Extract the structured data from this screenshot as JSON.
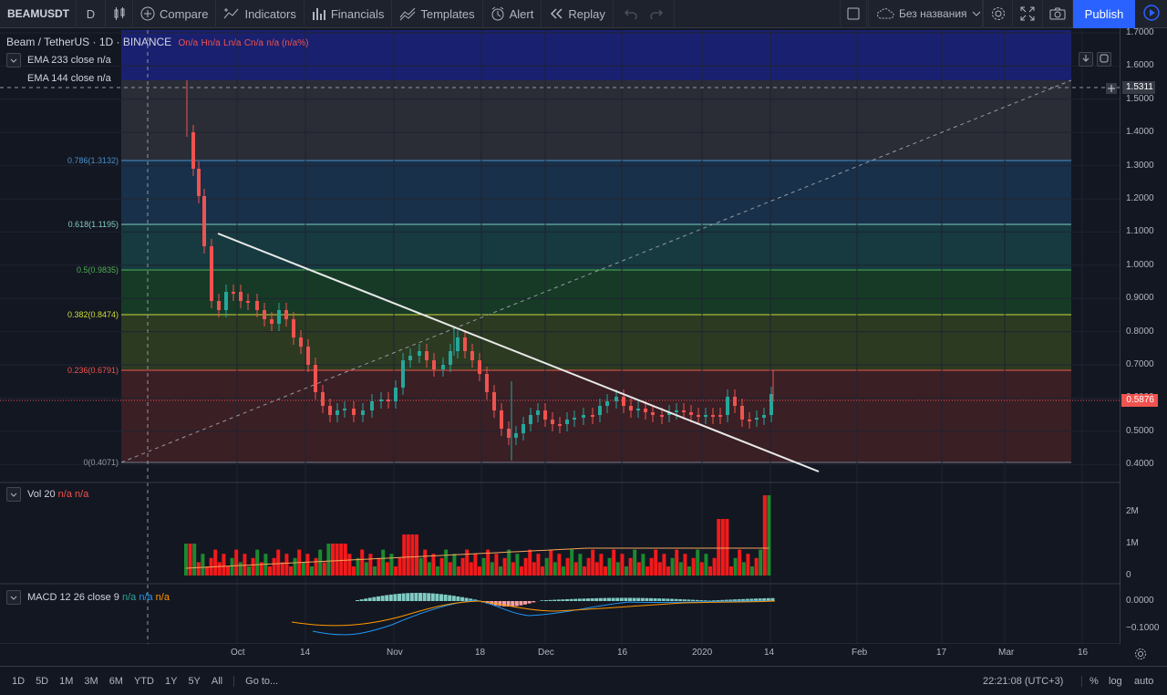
{
  "toolbar": {
    "symbol": "BEAMUSDT",
    "interval": "D",
    "compare": "Compare",
    "indicators": "Indicators",
    "financials": "Financials",
    "templates": "Templates",
    "alert": "Alert",
    "replay": "Replay",
    "layout_name": "Без названия",
    "publish": "Publish"
  },
  "legend": {
    "title": "Beam / TetherUS · 1D · BINANCE",
    "o": "On/a",
    "h": "Hn/a",
    "l": "Ln/a",
    "c": "Cn/a",
    "chg": "n/a (n/a%)",
    "ema233": "EMA 233 close",
    "ema144": "EMA 144 close",
    "na": "n/a",
    "vol": "Vol 20",
    "macd": "MACD 12 26 close 9"
  },
  "fib": [
    {
      "label": "0.786(1.3132)",
      "color": "#4a90c8"
    },
    {
      "label": "0.618(1.1195)",
      "color": "#80cbc4"
    },
    {
      "label": "0.5(0.9835)",
      "color": "#4caf50"
    },
    {
      "label": "0.382(0.8474)",
      "color": "#cddc39"
    },
    {
      "label": "0.236(0.6791)",
      "color": "#ef5350"
    },
    {
      "label": "0(0.4071)",
      "color": "#9598a1"
    }
  ],
  "price_axis": [
    "1.7000",
    "1.6000",
    "1.5000",
    "1.4000",
    "1.3000",
    "1.2000",
    "1.1000",
    "1.0000",
    "0.9000",
    "0.8000",
    "0.7000",
    "0.6000",
    "0.5000",
    "0.4000"
  ],
  "crosshair_price": "1.5311",
  "last_price": "0.5876",
  "vol_axis": [
    "2M",
    "1M",
    "0"
  ],
  "macd_axis": [
    "0.0000",
    "−0.1000"
  ],
  "time_axis": [
    "Oct",
    "14",
    "Nov",
    "18",
    "Dec",
    "16",
    "2020",
    "14",
    "Feb",
    "17",
    "Mar",
    "16"
  ],
  "bottom": {
    "ranges": [
      "1D",
      "5D",
      "1M",
      "3M",
      "6M",
      "YTD",
      "1Y",
      "5Y",
      "All"
    ],
    "goto": "Go to...",
    "clock": "22:21:08 (UTC+3)",
    "pct": "%",
    "log": "log",
    "auto": "auto"
  },
  "colors": {
    "up": "#26a69a",
    "down": "#ef5350",
    "vol_up": "#1b8a2e",
    "vol_down": "#f21a1a",
    "accent": "#2962ff"
  }
}
